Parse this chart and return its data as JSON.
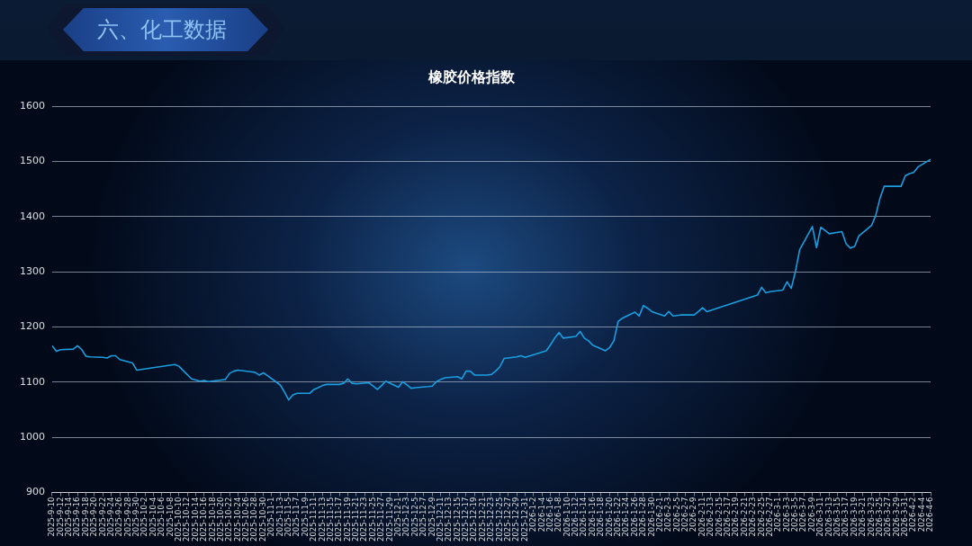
{
  "chart_data": {
    "type": "line",
    "title": "橡胶价格指数",
    "annotations": [
      "六、化工数据"
    ],
    "x": [
      "2025-09-10",
      "2025-09-11",
      "2025-09-12",
      "2025-09-15",
      "2025-09-16",
      "2025-09-17",
      "2025-09-18",
      "2025-09-19",
      "2025-09-22",
      "2025-09-23",
      "2025-09-24",
      "2025-09-25",
      "2025-09-26",
      "2025-09-29",
      "2025-09-30",
      "2025-10-09",
      "2025-10-10",
      "2025-10-13",
      "2025-10-14",
      "2025-10-15",
      "2025-10-16",
      "2025-10-17",
      "2025-10-20",
      "2025-10-21",
      "2025-10-22",
      "2025-10-23",
      "2025-10-24",
      "2025-10-27",
      "2025-10-28",
      "2025-10-29",
      "2025-10-30",
      "2025-10-31",
      "2025-11-03",
      "2025-11-04",
      "2025-11-05",
      "2025-11-06",
      "2025-11-07",
      "2025-11-10",
      "2025-11-11",
      "2025-11-12",
      "2025-11-13",
      "2025-11-14",
      "2025-11-17",
      "2025-11-18",
      "2025-11-19",
      "2025-11-20",
      "2025-11-21",
      "2025-11-24",
      "2025-11-25",
      "2025-11-26",
      "2025-11-27",
      "2025-11-28",
      "2025-12-01",
      "2025-12-02",
      "2025-12-03",
      "2025-12-04",
      "2025-12-05",
      "2025-12-08",
      "2025-12-09",
      "2025-12-10",
      "2025-12-11",
      "2025-12-12",
      "2025-12-15",
      "2025-12-16",
      "2025-12-17",
      "2025-12-18",
      "2025-12-19",
      "2025-12-22",
      "2025-12-23",
      "2025-12-24",
      "2025-12-25",
      "2025-12-26",
      "2025-12-29",
      "2025-12-30",
      "2025-12-31",
      "2026-01-05",
      "2026-01-06",
      "2026-01-07",
      "2026-01-08",
      "2026-01-09",
      "2026-01-12",
      "2026-01-13",
      "2026-01-14",
      "2026-01-15",
      "2026-01-16",
      "2026-01-19",
      "2026-01-20",
      "2026-01-21",
      "2026-01-22",
      "2026-01-23",
      "2026-01-26",
      "2026-01-27",
      "2026-01-28",
      "2026-01-29",
      "2026-01-30",
      "2026-02-02",
      "2026-02-03",
      "2026-02-04",
      "2026-02-05",
      "2026-02-06",
      "2026-02-09",
      "2026-02-10",
      "2026-02-11",
      "2026-02-12",
      "2026-02-24",
      "2026-02-25",
      "2026-02-26",
      "2026-02-27",
      "2026-03-02",
      "2026-03-03",
      "2026-03-04",
      "2026-03-05",
      "2026-03-06",
      "2026-03-09",
      "2026-03-10",
      "2026-03-11",
      "2026-03-12",
      "2026-03-13",
      "2026-03-16",
      "2026-03-17",
      "2026-03-18",
      "2026-03-19",
      "2026-03-20",
      "2026-03-23",
      "2026-03-24",
      "2026-03-25",
      "2026-03-26",
      "2026-03-27",
      "2026-03-30",
      "2026-03-31",
      "2026-04-01",
      "2026-04-02",
      "2026-04-03",
      "2026-04-06"
    ],
    "series": [
      {
        "color": "#1a9ee0",
        "values": [
          1166,
          1156,
          1159,
          1160,
          1166,
          1159,
          1147,
          1146,
          1145,
          1144,
          1148,
          1148,
          1141,
          1135,
          1122,
          1132,
          1129,
          1106,
          1104,
          1102,
          1103,
          1101,
          1104,
          1105,
          1116,
          1120,
          1122,
          1119,
          1118,
          1113,
          1117,
          1112,
          1095,
          1082,
          1068,
          1077,
          1080,
          1080,
          1087,
          1090,
          1094,
          1096,
          1096,
          1098,
          1106,
          1098,
          1097,
          1099,
          1093,
          1087,
          1094,
          1102,
          1091,
          1101,
          1095,
          1089,
          1090,
          1092,
          1093,
          1101,
          1105,
          1108,
          1110,
          1106,
          1120,
          1120,
          1113,
          1113,
          1114,
          1120,
          1128,
          1143,
          1146,
          1148,
          1145,
          1157,
          1168,
          1180,
          1190,
          1180,
          1183,
          1192,
          1180,
          1175,
          1167,
          1157,
          1163,
          1175,
          1210,
          1216,
          1227,
          1220,
          1239,
          1234,
          1228,
          1220,
          1228,
          1220,
          1221,
          1222,
          1222,
          1228,
          1235,
          1228,
          1258,
          1272,
          1262,
          1264,
          1267,
          1282,
          1270,
          1301,
          1340,
          1382,
          1344,
          1381,
          1375,
          1369,
          1373,
          1351,
          1343,
          1346,
          1365,
          1384,
          1402,
          1433,
          1455,
          1455,
          1455,
          1474,
          1478,
          1480,
          1490,
          1504
        ]
      }
    ],
    "xlim": [
      "2025-09-10",
      "2026-04-06"
    ],
    "xticks": [
      {
        "value": "2025-09-10",
        "label": "2025-9-10"
      },
      {
        "value": "2025-09-12",
        "label": "2025-9-12"
      },
      {
        "value": "2025-09-14",
        "label": "2025-9-14"
      },
      {
        "value": "2025-09-16",
        "label": "2025-9-16"
      },
      {
        "value": "2025-09-18",
        "label": "2025-9-18"
      },
      {
        "value": "2025-09-20",
        "label": "2025-9-20"
      },
      {
        "value": "2025-09-22",
        "label": "2025-9-22"
      },
      {
        "value": "2025-09-24",
        "label": "2025-9-24"
      },
      {
        "value": "2025-09-26",
        "label": "2025-9-26"
      },
      {
        "value": "2025-09-28",
        "label": "2025-9-28"
      },
      {
        "value": "2025-09-30",
        "label": "2025-9-30"
      },
      {
        "value": "2025-10-02",
        "label": "2025-10-2"
      },
      {
        "value": "2025-10-04",
        "label": "2025-10-4"
      },
      {
        "value": "2025-10-06",
        "label": "2025-10-6"
      },
      {
        "value": "2025-10-08",
        "label": "2025-10-8"
      },
      {
        "value": "2025-10-10",
        "label": "2025-10-10"
      },
      {
        "value": "2025-10-12",
        "label": "2025-10-12"
      },
      {
        "value": "2025-10-14",
        "label": "2025-10-14"
      },
      {
        "value": "2025-10-16",
        "label": "2025-10-16"
      },
      {
        "value": "2025-10-18",
        "label": "2025-10-18"
      },
      {
        "value": "2025-10-20",
        "label": "2025-10-20"
      },
      {
        "value": "2025-10-22",
        "label": "2025-10-22"
      },
      {
        "value": "2025-10-24",
        "label": "2025-10-24"
      },
      {
        "value": "2025-10-26",
        "label": "2025-10-26"
      },
      {
        "value": "2025-10-28",
        "label": "2025-10-28"
      },
      {
        "value": "2025-10-30",
        "label": "2025-10-30"
      },
      {
        "value": "2025-11-01",
        "label": "2025-11-1"
      },
      {
        "value": "2025-11-03",
        "label": "2025-11-3"
      },
      {
        "value": "2025-11-05",
        "label": "2025-11-5"
      },
      {
        "value": "2025-11-07",
        "label": "2025-11-7"
      },
      {
        "value": "2025-11-09",
        "label": "2025-11-9"
      },
      {
        "value": "2025-11-11",
        "label": "2025-11-11"
      },
      {
        "value": "2025-11-13",
        "label": "2025-11-13"
      },
      {
        "value": "2025-11-15",
        "label": "2025-11-15"
      },
      {
        "value": "2025-11-17",
        "label": "2025-11-17"
      },
      {
        "value": "2025-11-19",
        "label": "2025-11-19"
      },
      {
        "value": "2025-11-21",
        "label": "2025-11-21"
      },
      {
        "value": "2025-11-23",
        "label": "2025-11-23"
      },
      {
        "value": "2025-11-25",
        "label": "2025-11-25"
      },
      {
        "value": "2025-11-27",
        "label": "2025-11-27"
      },
      {
        "value": "2025-11-29",
        "label": "2025-11-29"
      },
      {
        "value": "2025-12-01",
        "label": "2025-12-1"
      },
      {
        "value": "2025-12-03",
        "label": "2025-12-3"
      },
      {
        "value": "2025-12-05",
        "label": "2025-12-5"
      },
      {
        "value": "2025-12-07",
        "label": "2025-12-7"
      },
      {
        "value": "2025-12-09",
        "label": "2025-12-9"
      },
      {
        "value": "2025-12-11",
        "label": "2025-12-11"
      },
      {
        "value": "2025-12-13",
        "label": "2025-12-13"
      },
      {
        "value": "2025-12-15",
        "label": "2025-12-15"
      },
      {
        "value": "2025-12-17",
        "label": "2025-12-17"
      },
      {
        "value": "2025-12-19",
        "label": "2025-12-19"
      },
      {
        "value": "2025-12-21",
        "label": "2025-12-21"
      },
      {
        "value": "2025-12-23",
        "label": "2025-12-23"
      },
      {
        "value": "2025-12-25",
        "label": "2025-12-25"
      },
      {
        "value": "2025-12-27",
        "label": "2025-12-27"
      },
      {
        "value": "2025-12-29",
        "label": "2025-12-29"
      },
      {
        "value": "2025-12-31",
        "label": "2025-12-31"
      },
      {
        "value": "2026-01-02",
        "label": "2026-1-2"
      },
      {
        "value": "2026-01-04",
        "label": "2026-1-4"
      },
      {
        "value": "2026-01-06",
        "label": "2026-1-6"
      },
      {
        "value": "2026-01-08",
        "label": "2026-1-8"
      },
      {
        "value": "2026-01-10",
        "label": "2026-1-10"
      },
      {
        "value": "2026-01-12",
        "label": "2026-1-12"
      },
      {
        "value": "2026-01-14",
        "label": "2026-1-14"
      },
      {
        "value": "2026-01-16",
        "label": "2026-1-16"
      },
      {
        "value": "2026-01-18",
        "label": "2026-1-18"
      },
      {
        "value": "2026-01-20",
        "label": "2026-1-20"
      },
      {
        "value": "2026-01-22",
        "label": "2026-1-22"
      },
      {
        "value": "2026-01-24",
        "label": "2026-1-24"
      },
      {
        "value": "2026-01-26",
        "label": "2026-1-26"
      },
      {
        "value": "2026-01-28",
        "label": "2026-1-28"
      },
      {
        "value": "2026-01-30",
        "label": "2026-1-30"
      },
      {
        "value": "2026-02-01",
        "label": "2026-2-1"
      },
      {
        "value": "2026-02-03",
        "label": "2026-2-3"
      },
      {
        "value": "2026-02-05",
        "label": "2026-2-5"
      },
      {
        "value": "2026-02-07",
        "label": "2026-2-7"
      },
      {
        "value": "2026-02-09",
        "label": "2026-2-9"
      },
      {
        "value": "2026-02-11",
        "label": "2026-2-11"
      },
      {
        "value": "2026-02-13",
        "label": "2026-2-13"
      },
      {
        "value": "2026-02-15",
        "label": "2026-2-15"
      },
      {
        "value": "2026-02-17",
        "label": "2026-2-17"
      },
      {
        "value": "2026-02-19",
        "label": "2026-2-19"
      },
      {
        "value": "2026-02-21",
        "label": "2026-2-21"
      },
      {
        "value": "2026-02-23",
        "label": "2026-2-23"
      },
      {
        "value": "2026-02-25",
        "label": "2026-2-25"
      },
      {
        "value": "2026-02-27",
        "label": "2026-2-27"
      },
      {
        "value": "2026-03-01",
        "label": "2026-3-1"
      },
      {
        "value": "2026-03-03",
        "label": "2026-3-3"
      },
      {
        "value": "2026-03-05",
        "label": "2026-3-5"
      },
      {
        "value": "2026-03-07",
        "label": "2026-3-7"
      },
      {
        "value": "2026-03-09",
        "label": "2026-3-9"
      },
      {
        "value": "2026-03-11",
        "label": "2026-3-11"
      },
      {
        "value": "2026-03-13",
        "label": "2026-3-13"
      },
      {
        "value": "2026-03-15",
        "label": "2026-3-15"
      },
      {
        "value": "2026-03-17",
        "label": "2026-3-17"
      },
      {
        "value": "2026-03-19",
        "label": "2026-3-19"
      },
      {
        "value": "2026-03-21",
        "label": "2026-3-21"
      },
      {
        "value": "2026-03-23",
        "label": "2026-3-23"
      },
      {
        "value": "2026-03-25",
        "label": "2026-3-25"
      },
      {
        "value": "2026-03-27",
        "label": "2026-3-27"
      },
      {
        "value": "2026-03-29",
        "label": "2026-3-29"
      },
      {
        "value": "2026-03-31",
        "label": "2026-3-31"
      },
      {
        "value": "2026-04-02",
        "label": "2026-4-2"
      },
      {
        "value": "2026-04-04",
        "label": "2026-4-4"
      },
      {
        "value": "2026-04-06",
        "label": "2026-4-6"
      }
    ],
    "ylim": [
      900,
      1600
    ],
    "yticks": [
      900,
      1000,
      1100,
      1200,
      1300,
      1400,
      1500,
      1600
    ],
    "grid": "y",
    "marker": "none",
    "line_style": "solid"
  }
}
